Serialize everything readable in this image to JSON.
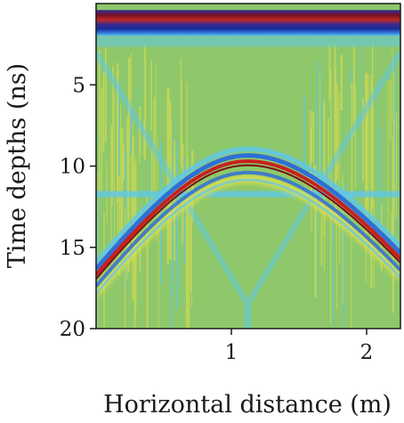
{
  "chart_data": {
    "type": "heatmap",
    "title": "",
    "xlabel": "Horizontal distance (m)",
    "ylabel": "Time depths (ns)",
    "xlim": [
      0.0,
      2.25
    ],
    "ylim": [
      20,
      0
    ],
    "y_inverted": true,
    "x_ticks": [
      {
        "value": 1,
        "label": "1"
      },
      {
        "value": 2,
        "label": "2"
      }
    ],
    "y_ticks": [
      {
        "value": 5,
        "label": "5"
      },
      {
        "value": 10,
        "label": "10"
      },
      {
        "value": 15,
        "label": "15"
      },
      {
        "value": 20,
        "label": "20"
      }
    ],
    "grid": false,
    "colormap": [
      "#1a1a8c",
      "#2f6fd6",
      "#5fc7e8",
      "#8ec86a",
      "#e8e04a",
      "#e0a030",
      "#c82020",
      "#7a0f0f"
    ],
    "background_color": "#8ec86a",
    "features": {
      "direct_wave": {
        "time_top_ns": 0.4,
        "time_bottom_ns": 2.0
      },
      "hyperbola": {
        "apex_x_m": 1.12,
        "apex_time_ns": 9.5,
        "left_time_ns": 16.5,
        "right_time_ns": 15.5
      },
      "horizontal_reflector": {
        "time_ns": 11.7
      },
      "crossing_diffraction": {
        "apex_x_m": 1.12,
        "apex_time_ns": 18.5
      }
    }
  }
}
